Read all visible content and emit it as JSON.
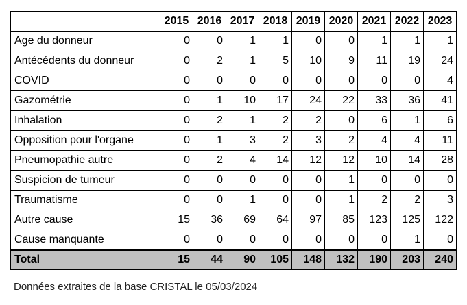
{
  "table": {
    "years": [
      "2015",
      "2016",
      "2017",
      "2018",
      "2019",
      "2020",
      "2021",
      "2022",
      "2023"
    ],
    "rows": [
      {
        "label": "Age du donneur",
        "values": [
          "0",
          "0",
          "1",
          "1",
          "0",
          "0",
          "1",
          "1",
          "1"
        ]
      },
      {
        "label": "Antécédents du donneur",
        "values": [
          "0",
          "2",
          "1",
          "5",
          "10",
          "9",
          "11",
          "19",
          "24"
        ]
      },
      {
        "label": "COVID",
        "values": [
          "0",
          "0",
          "0",
          "0",
          "0",
          "0",
          "0",
          "0",
          "4"
        ]
      },
      {
        "label": "Gazométrie",
        "values": [
          "0",
          "1",
          "10",
          "17",
          "24",
          "22",
          "33",
          "36",
          "41"
        ]
      },
      {
        "label": "Inhalation",
        "values": [
          "0",
          "2",
          "1",
          "2",
          "2",
          "0",
          "6",
          "1",
          "6"
        ]
      },
      {
        "label": "Opposition pour l'organe",
        "values": [
          "0",
          "1",
          "3",
          "2",
          "3",
          "2",
          "4",
          "4",
          "11"
        ]
      },
      {
        "label": "Pneumopathie autre",
        "values": [
          "0",
          "2",
          "4",
          "14",
          "12",
          "12",
          "10",
          "14",
          "28"
        ]
      },
      {
        "label": "Suspicion de tumeur",
        "values": [
          "0",
          "0",
          "0",
          "0",
          "0",
          "1",
          "0",
          "0",
          "0"
        ]
      },
      {
        "label": "Traumatisme",
        "values": [
          "0",
          "0",
          "1",
          "0",
          "0",
          "1",
          "2",
          "2",
          "3"
        ]
      },
      {
        "label": "Autre cause",
        "values": [
          "15",
          "36",
          "69",
          "64",
          "97",
          "85",
          "123",
          "125",
          "122"
        ]
      },
      {
        "label": "Cause manquante",
        "values": [
          "0",
          "0",
          "0",
          "0",
          "0",
          "0",
          "0",
          "1",
          "0"
        ]
      }
    ],
    "total": {
      "label": "Total",
      "values": [
        "15",
        "44",
        "90",
        "105",
        "148",
        "132",
        "190",
        "203",
        "240"
      ]
    }
  },
  "source_note": "Données extraites de la base CRISTAL le 05/03/2024",
  "colors": {
    "total_row_background": "#c0c0c0",
    "border": "#000000"
  }
}
